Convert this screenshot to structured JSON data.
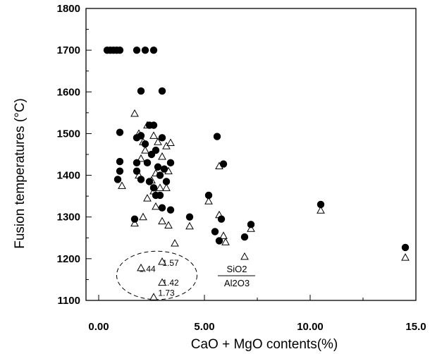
{
  "chart_data": {
    "type": "scatter",
    "xlabel": "CaO + MgO contents(%)",
    "ylabel": "Fusion temperatures (°C)",
    "xlim": [
      -0.6,
      15.0
    ],
    "ylim": [
      1100,
      1800
    ],
    "x_ticks": [
      0,
      5,
      10,
      15
    ],
    "x_tick_labels": [
      "0.00",
      "5.00",
      "10.00",
      "15.0"
    ],
    "y_ticks": [
      1100,
      1200,
      1300,
      1400,
      1500,
      1600,
      1700,
      1800
    ],
    "y_tick_labels": [
      "1100",
      "1200",
      "1300",
      "1400",
      "1500",
      "1600",
      "1700",
      "1800"
    ],
    "grid": false,
    "legend": "none",
    "series": [
      {
        "marker": "filled-circle",
        "points": [
          [
            0.4,
            1700
          ],
          [
            0.55,
            1700
          ],
          [
            0.7,
            1700
          ],
          [
            0.85,
            1700
          ],
          [
            1.0,
            1700
          ],
          [
            1.8,
            1700
          ],
          [
            2.2,
            1700
          ],
          [
            2.6,
            1700
          ],
          [
            2.0,
            1602
          ],
          [
            3.0,
            1602
          ],
          [
            1.0,
            1503
          ],
          [
            2.0,
            1495
          ],
          [
            1.8,
            1490
          ],
          [
            3.0,
            1490
          ],
          [
            2.2,
            1475
          ],
          [
            2.6,
            1520
          ],
          [
            2.4,
            1520
          ],
          [
            2.7,
            1460
          ],
          [
            1.0,
            1433
          ],
          [
            0.9,
            1390
          ],
          [
            1.0,
            1410
          ],
          [
            1.8,
            1430
          ],
          [
            1.8,
            1410
          ],
          [
            2.0,
            1390
          ],
          [
            2.3,
            1430
          ],
          [
            2.5,
            1450
          ],
          [
            2.8,
            1420
          ],
          [
            3.1,
            1415
          ],
          [
            3.4,
            1430
          ],
          [
            2.9,
            1400
          ],
          [
            3.2,
            1385
          ],
          [
            2.4,
            1385
          ],
          [
            2.6,
            1370
          ],
          [
            2.7,
            1352
          ],
          [
            2.9,
            1352
          ],
          [
            3.0,
            1322
          ],
          [
            3.4,
            1317
          ],
          [
            1.7,
            1295
          ],
          [
            4.3,
            1300
          ],
          [
            5.2,
            1352
          ],
          [
            5.6,
            1493
          ],
          [
            5.9,
            1427
          ],
          [
            5.8,
            1295
          ],
          [
            5.5,
            1265
          ],
          [
            5.7,
            1243
          ],
          [
            7.2,
            1282
          ],
          [
            6.9,
            1252
          ],
          [
            10.5,
            1330
          ],
          [
            14.5,
            1227
          ]
        ]
      },
      {
        "marker": "open-triangle",
        "points": [
          [
            1.7,
            1548
          ],
          [
            1.9,
            1500
          ],
          [
            2.1,
            1480
          ],
          [
            2.2,
            1460
          ],
          [
            2.3,
            1520
          ],
          [
            2.0,
            1440
          ],
          [
            1.9,
            1400
          ],
          [
            1.1,
            1375
          ],
          [
            2.6,
            1495
          ],
          [
            2.8,
            1480
          ],
          [
            3.2,
            1470
          ],
          [
            3.4,
            1478
          ],
          [
            3.3,
            1410
          ],
          [
            3.0,
            1445
          ],
          [
            2.7,
            1405
          ],
          [
            2.5,
            1388
          ],
          [
            2.9,
            1370
          ],
          [
            2.6,
            1362
          ],
          [
            3.2,
            1370
          ],
          [
            2.3,
            1345
          ],
          [
            2.7,
            1325
          ],
          [
            2.1,
            1300
          ],
          [
            1.7,
            1285
          ],
          [
            3.0,
            1290
          ],
          [
            3.3,
            1280
          ],
          [
            3.6,
            1237
          ],
          [
            4.3,
            1278
          ],
          [
            5.2,
            1338
          ],
          [
            5.7,
            1422
          ],
          [
            5.7,
            1305
          ],
          [
            5.9,
            1255
          ],
          [
            6.0,
            1240
          ],
          [
            7.2,
            1272
          ],
          [
            6.9,
            1205
          ],
          [
            10.5,
            1316
          ],
          [
            14.5,
            1203
          ],
          [
            2.0,
            1178
          ],
          [
            3.0,
            1193
          ],
          [
            3.0,
            1143
          ],
          [
            2.6,
            1108
          ]
        ]
      }
    ],
    "annotations": {
      "ratio_labels": [
        {
          "text": "1.44",
          "x": 2.3,
          "y": 1175
        },
        {
          "text": "1.57",
          "x": 3.4,
          "y": 1190
        },
        {
          "text": "1.42",
          "x": 3.4,
          "y": 1142
        },
        {
          "text": "1.73",
          "x": 3.2,
          "y": 1118
        }
      ],
      "ellipse": {
        "cx": 2.75,
        "cy": 1160,
        "rx": 1.9,
        "ry": 58
      },
      "fraction_numerator": "SiO2",
      "fraction_denominator": "Al2O3"
    }
  }
}
